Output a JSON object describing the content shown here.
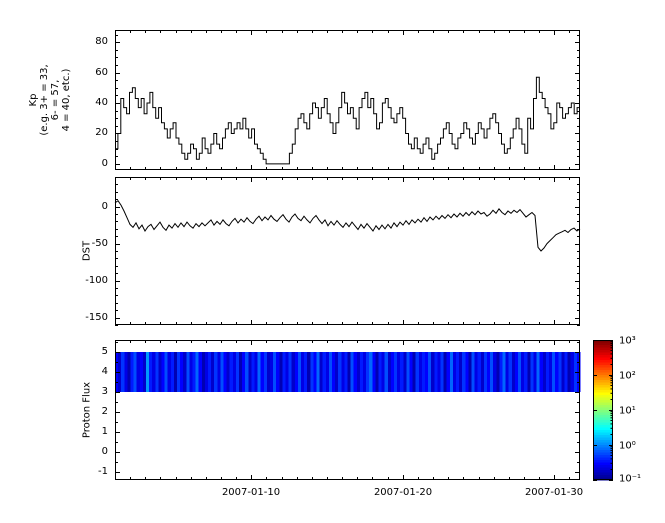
{
  "style": {
    "background": "#ffffff",
    "line_color": "#000000",
    "frame_color": "#000000"
  },
  "x_axis": {
    "range": [
      1,
      31.7
    ],
    "major": [
      10,
      20,
      30
    ],
    "minor_step": 1,
    "labels": [
      "2007-01-10",
      "2007-01-20",
      "2007-01-30"
    ]
  },
  "chart_data": [
    {
      "type": "line",
      "name": "kp",
      "ylabel_lines": [
        "Kp",
        "(e.g. 3+ = 33,",
        "6- = 57,",
        "4 = 40, etc.)"
      ],
      "ylim": [
        -4,
        88
      ],
      "yticks": [
        0,
        20,
        40,
        60,
        80
      ],
      "ytick_labels": [
        "0",
        "20",
        "40",
        "60",
        "80"
      ],
      "yminor": 5,
      "step": true,
      "grid": false,
      "values": [
        10,
        20,
        43,
        37,
        33,
        47,
        50,
        43,
        37,
        43,
        33,
        40,
        47,
        37,
        30,
        37,
        27,
        23,
        17,
        23,
        27,
        17,
        13,
        7,
        3,
        7,
        13,
        10,
        3,
        7,
        17,
        10,
        7,
        13,
        20,
        13,
        10,
        17,
        23,
        27,
        20,
        23,
        27,
        23,
        30,
        23,
        17,
        23,
        13,
        10,
        7,
        3,
        0,
        0,
        0,
        0,
        0,
        0,
        0,
        0,
        7,
        13,
        23,
        30,
        33,
        27,
        23,
        33,
        40,
        37,
        30,
        37,
        43,
        33,
        27,
        20,
        27,
        37,
        47,
        40,
        33,
        37,
        30,
        23,
        37,
        43,
        47,
        37,
        43,
        33,
        23,
        27,
        40,
        43,
        37,
        30,
        27,
        33,
        37,
        30,
        20,
        13,
        10,
        17,
        10,
        7,
        13,
        17,
        10,
        3,
        7,
        13,
        17,
        23,
        27,
        20,
        13,
        10,
        17,
        20,
        27,
        23,
        17,
        13,
        20,
        27,
        23,
        17,
        23,
        30,
        33,
        27,
        20,
        13,
        7,
        10,
        17,
        23,
        30,
        23,
        13,
        7,
        30,
        23,
        43,
        57,
        47,
        43,
        37,
        33,
        23,
        27,
        40,
        37,
        30,
        33,
        37,
        40,
        33,
        37
      ]
    },
    {
      "type": "line",
      "name": "dst",
      "ylabel": "DST",
      "ylim": [
        -160,
        40
      ],
      "yticks": [
        0,
        -50,
        -100,
        -150
      ],
      "ytick_labels": [
        "0",
        "-50",
        "-100",
        "-150"
      ],
      "yminor": 10,
      "step": false,
      "grid": false,
      "values": [
        5,
        8,
        2,
        -6,
        -15,
        -24,
        -28,
        -22,
        -30,
        -25,
        -33,
        -27,
        -24,
        -31,
        -26,
        -21,
        -28,
        -32,
        -25,
        -29,
        -23,
        -28,
        -22,
        -27,
        -21,
        -26,
        -29,
        -23,
        -27,
        -22,
        -26,
        -22,
        -18,
        -25,
        -20,
        -24,
        -18,
        -23,
        -26,
        -20,
        -16,
        -22,
        -17,
        -21,
        -15,
        -20,
        -23,
        -17,
        -13,
        -19,
        -14,
        -18,
        -12,
        -17,
        -20,
        -15,
        -11,
        -17,
        -21,
        -14,
        -10,
        -16,
        -19,
        -13,
        -18,
        -22,
        -16,
        -12,
        -18,
        -23,
        -18,
        -26,
        -20,
        -25,
        -19,
        -24,
        -28,
        -22,
        -27,
        -21,
        -26,
        -31,
        -24,
        -29,
        -23,
        -28,
        -33,
        -26,
        -31,
        -25,
        -30,
        -24,
        -29,
        -22,
        -27,
        -21,
        -25,
        -19,
        -24,
        -18,
        -22,
        -17,
        -21,
        -15,
        -20,
        -14,
        -18,
        -13,
        -17,
        -12,
        -16,
        -11,
        -15,
        -10,
        -14,
        -9,
        -13,
        -8,
        -12,
        -7,
        -11,
        -6,
        -10,
        -8,
        -13,
        -10,
        -5,
        -9,
        -3,
        -8,
        -11,
        -6,
        -9,
        -5,
        -8,
        -4,
        -9,
        -14,
        -11,
        -8,
        -12,
        -55,
        -60,
        -56,
        -50,
        -46,
        -42,
        -38,
        -36,
        -34,
        -32,
        -35,
        -31,
        -29,
        -33,
        -30
      ]
    },
    {
      "type": "heatmap",
      "name": "proton-flux",
      "ylabel": "Proton Flux",
      "ylim": [
        -1.4,
        5.6
      ],
      "yticks": [
        5,
        4,
        3,
        2,
        1,
        0,
        -1
      ],
      "ytick_labels": [
        "5",
        "4",
        "3",
        "2",
        "1",
        "0",
        "-1"
      ],
      "yminor": 0.5,
      "band_y": [
        3,
        5
      ],
      "values_log10": [
        -0.5,
        -0.7,
        -0.3,
        -0.6,
        -0.8,
        -0.4,
        -0.2,
        -0.6,
        -0.5,
        -0.7,
        0.1,
        -0.4,
        -0.6,
        -0.3,
        -0.7,
        -0.5,
        -0.2,
        -0.6,
        -0.4,
        -0.8,
        -0.3,
        -0.5,
        -0.7,
        -0.2,
        -0.6,
        -0.4,
        -0.1,
        -0.5,
        -0.8,
        -0.6,
        -0.4,
        -0.7,
        -0.3,
        -0.6,
        -0.2,
        -0.5,
        -0.7,
        -0.4,
        -0.6,
        -0.3,
        -0.8,
        -0.5,
        -0.2,
        -0.7,
        -0.4,
        -0.6,
        -0.1,
        -0.5,
        -0.3,
        -0.7,
        -0.6,
        -0.2,
        -0.5,
        -0.8,
        -0.4,
        -0.6,
        -0.3,
        -0.7,
        -0.5,
        -0.2,
        -0.6,
        -0.4,
        -0.8,
        -0.3,
        -0.5,
        -0.1,
        -0.7,
        -0.4,
        -0.6,
        -0.2,
        -0.5,
        -0.7,
        -0.3,
        -0.6,
        -0.4,
        -0.8,
        -0.2,
        -0.5,
        -0.7,
        -0.4,
        -0.6,
        -0.3,
        -0.1,
        -0.5,
        -0.8,
        -0.4,
        -0.6,
        -0.2,
        -0.7,
        -0.5,
        -0.3,
        -0.6,
        -0.4,
        -0.7,
        -0.2,
        -0.5,
        -0.8,
        -0.3,
        -0.6,
        -0.4,
        -0.5,
        -0.2,
        -0.7,
        -0.4,
        -0.6,
        -0.3,
        -0.8,
        -0.5,
        -0.1,
        -0.6,
        -0.4,
        -0.7,
        -0.3,
        -0.5,
        -0.8,
        -0.2,
        -0.6,
        -0.4,
        -0.7,
        -0.3,
        -0.5,
        -0.2,
        -0.6,
        -0.8,
        -0.4,
        -0.1,
        -0.6,
        -0.3,
        -0.7,
        -0.5,
        -0.2,
        -0.6,
        -0.4,
        -0.8,
        -0.3,
        -0.6,
        -0.1,
        -0.5,
        -0.7,
        -0.4,
        -0.6,
        -0.2,
        -0.5,
        -0.3,
        -0.7,
        -0.4,
        -0.8,
        -0.6,
        -0.3,
        -0.5
      ],
      "colorbar": {
        "scale": "log",
        "range_exp": [
          -1,
          3
        ],
        "tick_labels": [
          "10³",
          "10²",
          "10¹",
          "10⁰",
          "10⁻¹"
        ],
        "colormap": "jet",
        "colormap_hex": [
          "#000080",
          "#0000ff",
          "#00ffff",
          "#00ff00",
          "#ffff00",
          "#ff8000",
          "#ff0000",
          "#800000"
        ]
      }
    }
  ]
}
